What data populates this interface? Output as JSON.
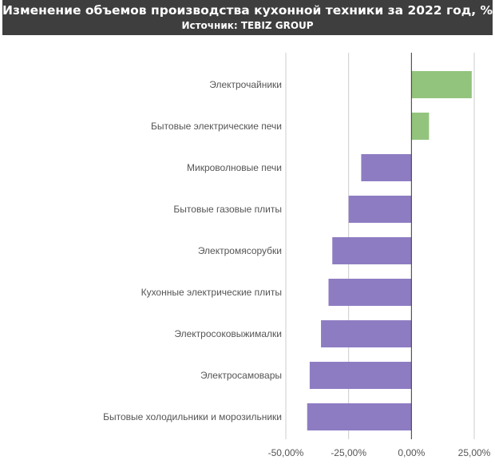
{
  "header": {
    "title": "Изменение объемов производства кухонной техники за 2022 год, %",
    "subtitle": "Источник: TEBIZ GROUP"
  },
  "colors": {
    "positive": "#93c47d",
    "negative": "#8e7cc3",
    "grid": "#cccccc",
    "axis": "#333333",
    "header_bg": "#3e3e3e"
  },
  "chart_data": {
    "type": "bar",
    "orientation": "horizontal",
    "title": "Изменение объемов производства кухонной техники за 2022 год, %",
    "subtitle": "Источник: TEBIZ GROUP",
    "categories": [
      "Электрочайники",
      "Бытовые электрические печи",
      "Микроволновые печи",
      "Бытовые газовые плиты",
      "Электромясорубки",
      "Кухонные электрические плиты",
      "Электросоковыжималки",
      "Электросамовары",
      "Бытовые холодильники и морозильники"
    ],
    "values": [
      24,
      7,
      -20,
      -25,
      -31.5,
      -33,
      -36,
      -40.5,
      -41.5
    ],
    "xlim": [
      -50,
      25
    ],
    "xticks": [
      -50,
      -25,
      0,
      25
    ],
    "xtick_labels": [
      "-50,00%",
      "-25,00%",
      "0,00%",
      "25,00%"
    ],
    "grid": true,
    "legend": "none"
  }
}
